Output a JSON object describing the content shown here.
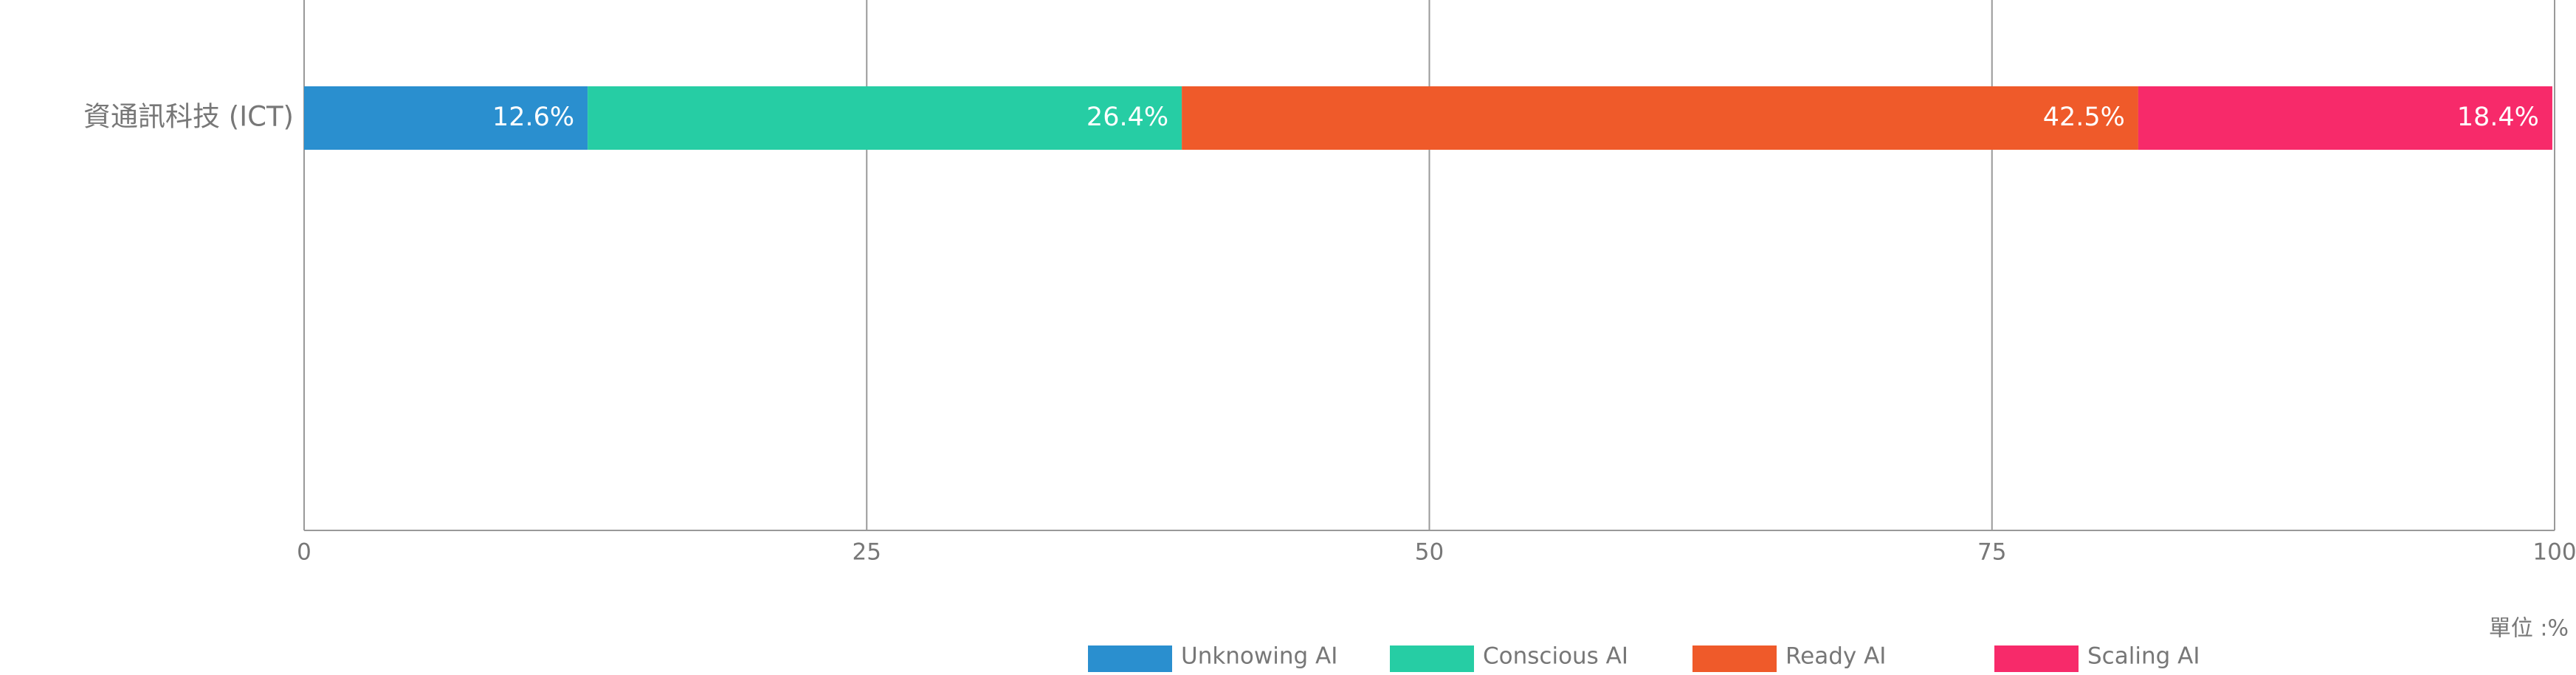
{
  "chart_data": {
    "type": "stacked_bar_horizontal",
    "categories": [
      "資通訊科技 (ICT)"
    ],
    "series": [
      {
        "name": "Unknowing AI",
        "color": "#2a8fcf",
        "values": [
          12.6
        ],
        "value_labels": [
          "12.6%"
        ]
      },
      {
        "name": "Conscious AI",
        "color": "#26cda4",
        "values": [
          26.4
        ],
        "value_labels": [
          "26.4%"
        ]
      },
      {
        "name": "Ready AI",
        "color": "#ef5a2a",
        "values": [
          42.5
        ],
        "value_labels": [
          "42.5%"
        ]
      },
      {
        "name": "Scaling AI",
        "color": "#f72a6a",
        "values": [
          18.4
        ],
        "value_labels": [
          "18.4%"
        ]
      }
    ],
    "xlim": [
      0,
      100
    ],
    "xticks": [
      0,
      25,
      50,
      75,
      100
    ],
    "grid": true,
    "unit_label": "單位 :%",
    "legend": "bottom"
  }
}
